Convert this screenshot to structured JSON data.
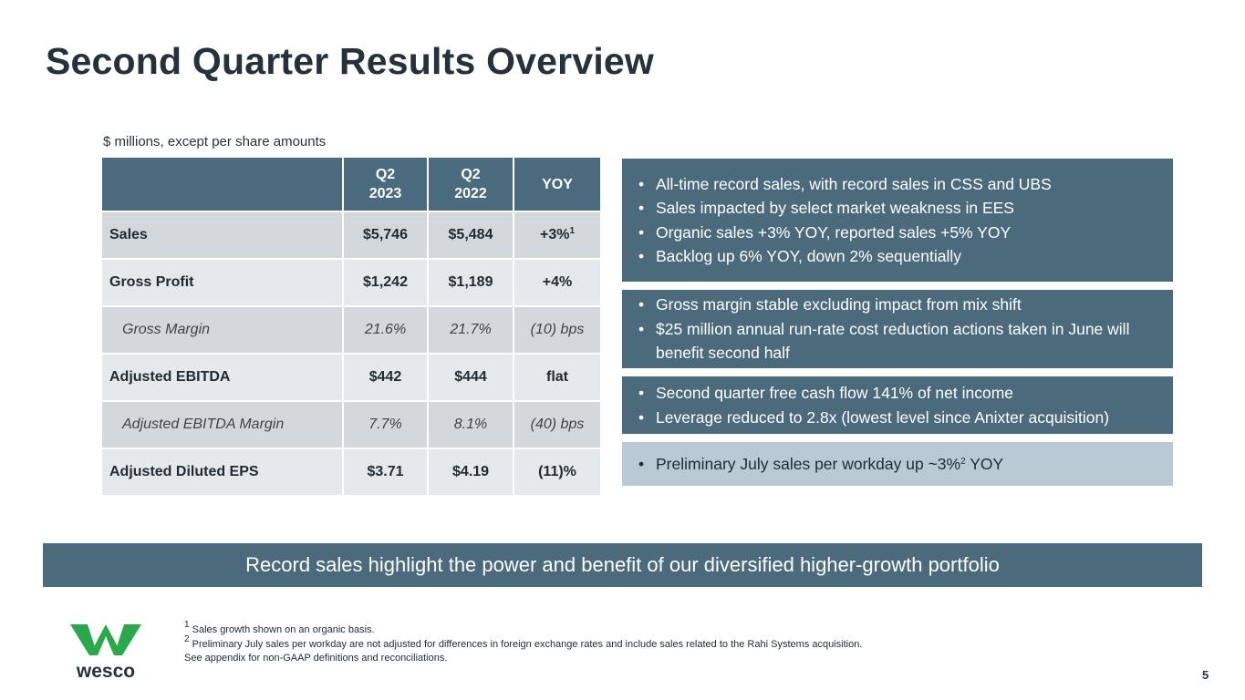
{
  "title": "Second Quarter Results Overview",
  "units_note": "$ millions, except per share amounts",
  "table": {
    "headers": [
      {
        "line1": "",
        "line2": ""
      },
      {
        "line1": "Q2",
        "line2": "2023"
      },
      {
        "line1": "Q2",
        "line2": "2022"
      },
      {
        "line1": "YOY",
        "line2": ""
      }
    ],
    "rows": [
      {
        "label": "Sales",
        "q2_2023": "$5,746",
        "q2_2022": "$5,484",
        "yoy": "+3%",
        "yoy_sup": "1"
      },
      {
        "label": "Gross Profit",
        "q2_2023": "$1,242",
        "q2_2022": "$1,189",
        "yoy": "+4%"
      },
      {
        "label": "Gross Margin",
        "q2_2023": "21.6%",
        "q2_2022": "21.7%",
        "yoy": "(10) bps"
      },
      {
        "label": "Adjusted EBITDA",
        "q2_2023": "$442",
        "q2_2022": "$444",
        "yoy": "flat"
      },
      {
        "label": "Adjusted EBITDA Margin",
        "q2_2023": "7.7%",
        "q2_2022": "8.1%",
        "yoy": "(40) bps"
      },
      {
        "label": "Adjusted Diluted EPS",
        "q2_2023": "$3.71",
        "q2_2022": "$4.19",
        "yoy": "(11)%"
      }
    ]
  },
  "highlights": [
    {
      "bullets": [
        "All-time record sales, with record sales in CSS and UBS",
        "Sales impacted by select market weakness in EES",
        "Organic sales +3% YOY, reported sales +5% YOY",
        "Backlog up 6% YOY, down 2% sequentially"
      ]
    },
    {
      "bullets": [
        "Gross margin stable excluding impact from mix shift",
        "$25 million annual run-rate cost reduction actions taken in June will benefit second half"
      ]
    },
    {
      "bullets": [
        "Second quarter free cash flow 141% of net income",
        "Leverage reduced to 2.8x (lowest level since Anixter acquisition)"
      ]
    },
    {
      "bullets": [
        {
          "before": "Preliminary July sales per workday up ~3%",
          "sup": "2",
          "after": " YOY"
        }
      ]
    }
  ],
  "banner": "Record sales highlight the power and benefit of our diversified higher-growth portfolio",
  "logo": {
    "text": "wesco",
    "icon": "wesco-w-logo-icon",
    "color": "#2aa84a"
  },
  "footnotes": [
    {
      "sup": "1",
      "text": " Sales growth shown on an organic basis."
    },
    {
      "sup": "2",
      "text": " Preliminary July sales per workday are not adjusted for differences in foreign exchange rates and include sales related to the Rahi Systems acquisition."
    },
    {
      "sup": "",
      "text": "See appendix for non-GAAP definitions and reconciliations."
    }
  ],
  "page_number": "5",
  "colors": {
    "accent": "#4b6b7d",
    "light_box": "#b9cad5",
    "row_dark": "#d3d8dc",
    "row_light": "#e6e9eb"
  }
}
